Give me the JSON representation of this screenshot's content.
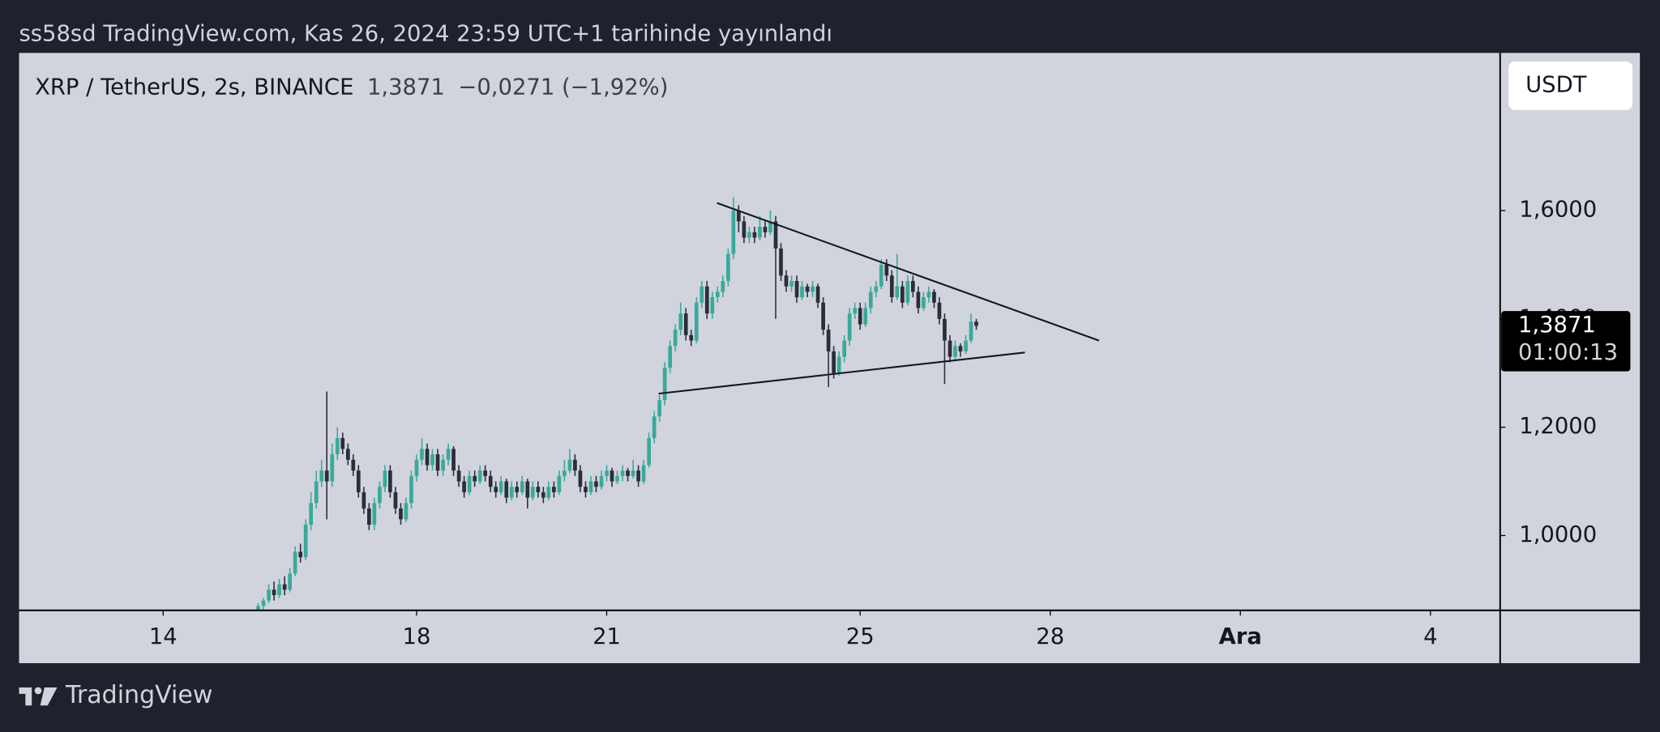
{
  "header": {
    "publisher": "ss58sd TradingView.com, Kas 26, 2024 23:59 UTC+1 tarihinde yayınlandı"
  },
  "footer": {
    "brand": "TradingView"
  },
  "chart_data": {
    "type": "candlestick",
    "title": "XRP / TetherUS, 2s, BINANCE",
    "last_price_label": "1,3871",
    "change_label": "−0,0271 (−1,92%)",
    "countdown": "01:00:13",
    "currency": "USDT",
    "up_color": "#3aa99b",
    "down_color": "#2a2e39",
    "x": [
      15.5,
      15.583,
      15.667,
      15.75,
      15.833,
      15.917,
      16,
      16.083,
      16.167,
      16.25,
      16.333,
      16.417,
      16.5,
      16.583,
      16.667,
      16.75,
      16.833,
      16.917,
      17,
      17.083,
      17.167,
      17.25,
      17.333,
      17.417,
      17.5,
      17.583,
      17.667,
      17.75,
      17.833,
      17.917,
      18,
      18.083,
      18.167,
      18.25,
      18.333,
      18.417,
      18.5,
      18.583,
      18.667,
      18.75,
      18.833,
      18.917,
      19,
      19.083,
      19.167,
      19.25,
      19.333,
      19.417,
      19.5,
      19.583,
      19.667,
      19.75,
      19.833,
      19.917,
      20,
      20.083,
      20.167,
      20.25,
      20.333,
      20.417,
      20.5,
      20.583,
      20.667,
      20.75,
      20.833,
      20.917,
      21,
      21.083,
      21.167,
      21.25,
      21.333,
      21.417,
      21.5,
      21.583,
      21.667,
      21.75,
      21.833,
      21.917,
      22,
      22.083,
      22.167,
      22.25,
      22.333,
      22.417,
      22.5,
      22.583,
      22.667,
      22.75,
      22.833,
      22.917,
      23,
      23.083,
      23.167,
      23.25,
      23.333,
      23.417,
      23.5,
      23.583,
      23.667,
      23.75,
      23.833,
      23.917,
      24,
      24.083,
      24.167,
      24.25,
      24.333,
      24.417,
      24.5,
      24.583,
      24.667,
      24.75,
      24.833,
      24.917,
      25,
      25.083,
      25.167,
      25.25,
      25.333,
      25.417,
      25.5,
      25.583,
      25.667,
      25.75,
      25.833,
      25.917,
      26,
      26.083,
      26.167,
      26.25,
      26.333,
      26.417,
      26.5,
      26.583,
      26.667,
      26.75,
      26.833
    ],
    "open": [
      0.86,
      0.87,
      0.88,
      0.9,
      0.89,
      0.91,
      0.9,
      0.93,
      0.97,
      0.96,
      1.02,
      1.06,
      1.1,
      1.12,
      1.1,
      1.15,
      1.18,
      1.16,
      1.14,
      1.12,
      1.08,
      1.05,
      1.02,
      1.06,
      1.09,
      1.12,
      1.08,
      1.05,
      1.03,
      1.06,
      1.11,
      1.14,
      1.16,
      1.13,
      1.15,
      1.12,
      1.14,
      1.16,
      1.12,
      1.1,
      1.08,
      1.11,
      1.1,
      1.12,
      1.11,
      1.09,
      1.08,
      1.1,
      1.07,
      1.09,
      1.08,
      1.1,
      1.07,
      1.09,
      1.08,
      1.07,
      1.09,
      1.08,
      1.11,
      1.12,
      1.14,
      1.12,
      1.09,
      1.08,
      1.1,
      1.09,
      1.11,
      1.12,
      1.1,
      1.11,
      1.12,
      1.11,
      1.12,
      1.1,
      1.13,
      1.18,
      1.22,
      1.25,
      1.31,
      1.35,
      1.38,
      1.41,
      1.37,
      1.36,
      1.43,
      1.46,
      1.41,
      1.44,
      1.45,
      1.47,
      1.52,
      1.6,
      1.58,
      1.55,
      1.56,
      1.55,
      1.57,
      1.56,
      1.58,
      1.53,
      1.48,
      1.46,
      1.47,
      1.44,
      1.46,
      1.45,
      1.46,
      1.43,
      1.38,
      1.34,
      1.3,
      1.33,
      1.36,
      1.41,
      1.42,
      1.39,
      1.42,
      1.45,
      1.46,
      1.5,
      1.48,
      1.44,
      1.46,
      1.43,
      1.47,
      1.45,
      1.42,
      1.44,
      1.45,
      1.43,
      1.4,
      1.36,
      1.33,
      1.35,
      1.34,
      1.36,
      1.395
    ],
    "high": [
      0.875,
      0.885,
      0.91,
      0.915,
      0.92,
      0.925,
      0.94,
      0.98,
      0.985,
      1.03,
      1.08,
      1.12,
      1.14,
      1.266,
      1.17,
      1.2,
      1.19,
      1.17,
      1.15,
      1.13,
      1.09,
      1.06,
      1.07,
      1.1,
      1.13,
      1.13,
      1.09,
      1.06,
      1.07,
      1.12,
      1.15,
      1.18,
      1.17,
      1.16,
      1.16,
      1.15,
      1.17,
      1.165,
      1.13,
      1.11,
      1.12,
      1.12,
      1.13,
      1.13,
      1.12,
      1.1,
      1.11,
      1.105,
      1.1,
      1.1,
      1.11,
      1.105,
      1.1,
      1.1,
      1.09,
      1.1,
      1.1,
      1.12,
      1.14,
      1.16,
      1.15,
      1.13,
      1.1,
      1.11,
      1.11,
      1.12,
      1.13,
      1.125,
      1.12,
      1.13,
      1.125,
      1.14,
      1.13,
      1.14,
      1.19,
      1.23,
      1.26,
      1.32,
      1.36,
      1.39,
      1.43,
      1.42,
      1.38,
      1.44,
      1.47,
      1.47,
      1.45,
      1.46,
      1.48,
      1.53,
      1.625,
      1.61,
      1.59,
      1.57,
      1.57,
      1.59,
      1.58,
      1.6,
      1.59,
      1.54,
      1.49,
      1.48,
      1.48,
      1.47,
      1.465,
      1.47,
      1.465,
      1.44,
      1.39,
      1.35,
      1.34,
      1.37,
      1.42,
      1.43,
      1.43,
      1.43,
      1.46,
      1.47,
      1.51,
      1.51,
      1.49,
      1.52,
      1.47,
      1.48,
      1.48,
      1.46,
      1.45,
      1.46,
      1.455,
      1.44,
      1.41,
      1.37,
      1.36,
      1.355,
      1.37,
      1.41,
      1.4
    ],
    "low": [
      0.855,
      0.862,
      0.875,
      0.88,
      0.885,
      0.89,
      0.895,
      0.925,
      0.95,
      0.955,
      1.01,
      1.05,
      1.09,
      1.03,
      1.09,
      1.14,
      1.15,
      1.13,
      1.11,
      1.07,
      1.04,
      1.01,
      1.01,
      1.05,
      1.08,
      1.07,
      1.04,
      1.02,
      1.025,
      1.05,
      1.1,
      1.13,
      1.12,
      1.12,
      1.11,
      1.11,
      1.13,
      1.11,
      1.09,
      1.07,
      1.075,
      1.09,
      1.095,
      1.1,
      1.08,
      1.07,
      1.075,
      1.06,
      1.065,
      1.07,
      1.075,
      1.05,
      1.065,
      1.07,
      1.06,
      1.065,
      1.07,
      1.075,
      1.1,
      1.115,
      1.11,
      1.08,
      1.07,
      1.075,
      1.08,
      1.085,
      1.1,
      1.09,
      1.095,
      1.1,
      1.1,
      1.105,
      1.09,
      1.095,
      1.125,
      1.17,
      1.21,
      1.24,
      1.3,
      1.34,
      1.37,
      1.36,
      1.35,
      1.355,
      1.42,
      1.4,
      1.4,
      1.43,
      1.44,
      1.46,
      1.51,
      1.56,
      1.54,
      1.54,
      1.54,
      1.545,
      1.55,
      1.555,
      1.4,
      1.47,
      1.45,
      1.45,
      1.43,
      1.435,
      1.44,
      1.44,
      1.42,
      1.37,
      1.274,
      1.29,
      1.295,
      1.32,
      1.35,
      1.4,
      1.38,
      1.385,
      1.41,
      1.44,
      1.455,
      1.47,
      1.43,
      1.435,
      1.42,
      1.425,
      1.44,
      1.41,
      1.415,
      1.43,
      1.42,
      1.39,
      1.28,
      1.32,
      1.325,
      1.33,
      1.335,
      1.355,
      1.38
    ],
    "close": [
      0.87,
      0.88,
      0.9,
      0.89,
      0.91,
      0.9,
      0.93,
      0.97,
      0.96,
      1.02,
      1.06,
      1.1,
      1.12,
      1.1,
      1.15,
      1.18,
      1.16,
      1.14,
      1.12,
      1.08,
      1.05,
      1.02,
      1.06,
      1.09,
      1.12,
      1.08,
      1.05,
      1.03,
      1.06,
      1.11,
      1.14,
      1.16,
      1.13,
      1.15,
      1.12,
      1.14,
      1.16,
      1.12,
      1.1,
      1.08,
      1.11,
      1.1,
      1.12,
      1.11,
      1.09,
      1.08,
      1.1,
      1.07,
      1.09,
      1.08,
      1.1,
      1.07,
      1.09,
      1.08,
      1.07,
      1.09,
      1.08,
      1.11,
      1.12,
      1.14,
      1.12,
      1.09,
      1.08,
      1.1,
      1.09,
      1.11,
      1.12,
      1.1,
      1.11,
      1.12,
      1.11,
      1.12,
      1.1,
      1.13,
      1.18,
      1.22,
      1.25,
      1.31,
      1.35,
      1.38,
      1.41,
      1.37,
      1.36,
      1.43,
      1.46,
      1.41,
      1.44,
      1.45,
      1.47,
      1.52,
      1.6,
      1.58,
      1.55,
      1.56,
      1.55,
      1.57,
      1.56,
      1.58,
      1.53,
      1.48,
      1.46,
      1.47,
      1.44,
      1.46,
      1.45,
      1.46,
      1.43,
      1.38,
      1.34,
      1.3,
      1.33,
      1.36,
      1.41,
      1.42,
      1.39,
      1.42,
      1.45,
      1.46,
      1.5,
      1.48,
      1.44,
      1.46,
      1.43,
      1.47,
      1.45,
      1.42,
      1.44,
      1.45,
      1.43,
      1.4,
      1.36,
      1.33,
      1.35,
      1.34,
      1.36,
      1.395,
      1.3871
    ],
    "trendlines": [
      {
        "x": [
          22.74,
          28.77
        ],
        "y": [
          1.614,
          1.36
        ]
      },
      {
        "x": [
          21.82,
          27.6
        ],
        "y": [
          1.262,
          1.338
        ]
      }
    ],
    "xlim": [
      11.726,
      35.1
    ],
    "xticks": [
      14,
      18,
      21,
      25,
      28,
      {
        "value": 31,
        "label": "Ara"
      },
      {
        "value": 34,
        "label": "4"
      }
    ],
    "ylim": [
      0.862,
      1.891
    ],
    "yticks": [
      {
        "value": 1.0,
        "label": "1,0000"
      },
      {
        "value": 1.2,
        "label": "1,2000"
      },
      {
        "value": 1.4,
        "label": "1,4000"
      },
      {
        "value": 1.6,
        "label": "1,6000"
      }
    ],
    "grid": false
  }
}
